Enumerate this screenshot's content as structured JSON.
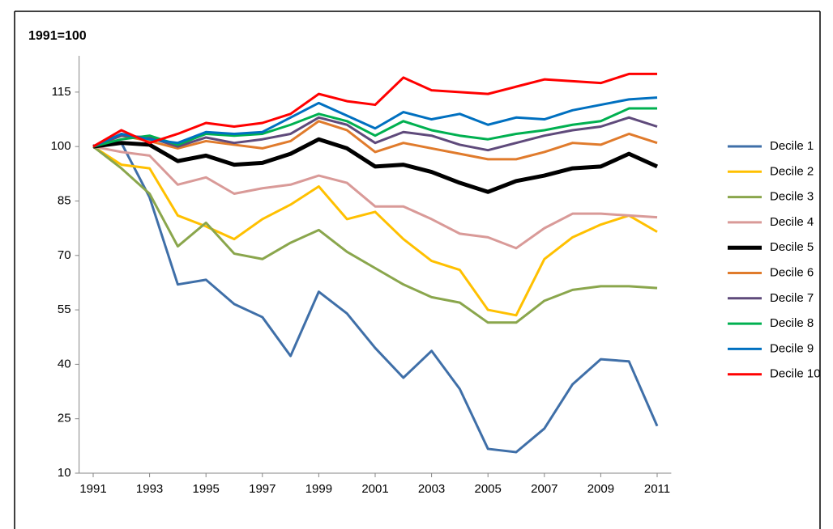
{
  "chart_data": {
    "type": "line",
    "title": "1991=100",
    "x": [
      1991,
      1992,
      1993,
      1994,
      1995,
      1996,
      1997,
      1998,
      1999,
      2000,
      2001,
      2002,
      2003,
      2004,
      2005,
      2006,
      2007,
      2008,
      2009,
      2010,
      2011
    ],
    "xlim": [
      1990.5,
      2011.5
    ],
    "xticks": [
      1991,
      1993,
      1995,
      1997,
      1999,
      2001,
      2003,
      2005,
      2007,
      2009,
      2011
    ],
    "ylim": [
      10,
      125
    ],
    "yticks": [
      10,
      25,
      40,
      55,
      70,
      85,
      100,
      115
    ],
    "grid": false,
    "legend": "right",
    "series": [
      {
        "name": "Decile 1",
        "color": "#3f6fa8",
        "width": 3,
        "values": [
          100,
          101,
          86,
          62,
          63.3,
          56.6,
          53,
          42.3,
          60,
          54,
          44.5,
          36.3,
          43.7,
          33.2,
          16.7,
          15.8,
          22.3,
          34.5,
          41.4,
          40.8,
          23
        ]
      },
      {
        "name": "Decile 2",
        "color": "#ffc000",
        "width": 3,
        "values": [
          100,
          95,
          94,
          81,
          78,
          74.5,
          80,
          84,
          89,
          80,
          82,
          74.5,
          68.5,
          66,
          55,
          53.5,
          69,
          75,
          78.5,
          81,
          76.5
        ]
      },
      {
        "name": "Decile 3",
        "color": "#8aa64c",
        "width": 3,
        "values": [
          100,
          94,
          87,
          72.5,
          79,
          70.5,
          69,
          73.5,
          77,
          71,
          66.5,
          62,
          58.5,
          57,
          51.5,
          51.5,
          57.5,
          60.5,
          61.5,
          61.5,
          61
        ]
      },
      {
        "name": "Decile 4",
        "color": "#d99a98",
        "width": 3,
        "values": [
          100,
          98.5,
          97.5,
          89.5,
          91.5,
          87,
          88.5,
          89.5,
          92,
          90,
          83.5,
          83.5,
          80,
          76,
          75,
          72,
          77.5,
          81.5,
          81.5,
          81,
          80.5
        ]
      },
      {
        "name": "Decile 5",
        "color": "#000000",
        "width": 5,
        "values": [
          100,
          101,
          100.5,
          96,
          97.5,
          95,
          95.5,
          98,
          102,
          99.5,
          94.5,
          95,
          93,
          90,
          87.5,
          90.5,
          92,
          94,
          94.5,
          98,
          94.5
        ]
      },
      {
        "name": "Decile 6",
        "color": "#e07b2c",
        "width": 3,
        "values": [
          100,
          103,
          101.5,
          99.5,
          101.5,
          100.5,
          99.5,
          101.5,
          107,
          104.5,
          98.5,
          101,
          99.5,
          98,
          96.5,
          96.5,
          98.5,
          101,
          100.5,
          103.5,
          101
        ]
      },
      {
        "name": "Decile 7",
        "color": "#5f4a7b",
        "width": 3,
        "values": [
          100,
          103,
          102.5,
          100,
          102.5,
          101,
          102,
          103.5,
          108,
          106,
          101,
          104,
          103,
          100.5,
          99,
          101,
          103,
          104.5,
          105.5,
          108,
          105.5
        ]
      },
      {
        "name": "Decile 8",
        "color": "#00b050",
        "width": 3,
        "values": [
          100,
          102,
          103,
          100.5,
          103.5,
          103,
          103.5,
          106,
          109,
          107,
          103,
          107,
          104.5,
          103,
          102,
          103.5,
          104.5,
          106,
          107,
          110.5,
          110.5
        ]
      },
      {
        "name": "Decile 9",
        "color": "#0070c0",
        "width": 3,
        "values": [
          100,
          103.5,
          102,
          101,
          104,
          103.5,
          104,
          108,
          112,
          108.5,
          105,
          109.5,
          107.5,
          109,
          106,
          108,
          107.5,
          110,
          111.5,
          113,
          113.5
        ]
      },
      {
        "name": "Decile 10",
        "color": "#ff0000",
        "width": 3,
        "values": [
          100,
          104.5,
          101,
          103.5,
          106.5,
          105.5,
          106.5,
          109,
          114.5,
          112.5,
          111.5,
          119,
          115.5,
          115,
          114.5,
          116.5,
          118.5,
          118,
          117.5,
          120,
          120
        ]
      }
    ]
  }
}
